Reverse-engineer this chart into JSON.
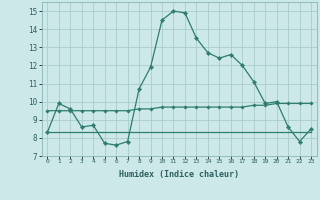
{
  "xlabel": "Humidex (Indice chaleur)",
  "bg_color": "#cce8e8",
  "grid_color": "#aacccc",
  "line_color": "#2e7d6e",
  "xlim": [
    -0.5,
    23.5
  ],
  "ylim": [
    7,
    15.5
  ],
  "yticks": [
    7,
    8,
    9,
    10,
    11,
    12,
    13,
    14,
    15
  ],
  "xticks": [
    0,
    1,
    2,
    3,
    4,
    5,
    6,
    7,
    8,
    9,
    10,
    11,
    12,
    13,
    14,
    15,
    16,
    17,
    18,
    19,
    20,
    21,
    22,
    23
  ],
  "series1_x": [
    0,
    1,
    2,
    3,
    4,
    5,
    6,
    7,
    8,
    9,
    10,
    11,
    12,
    13,
    14,
    15,
    16,
    17,
    18,
    19,
    20,
    21,
    22,
    23
  ],
  "series1_y": [
    8.3,
    9.9,
    9.6,
    8.6,
    8.7,
    7.7,
    7.6,
    7.8,
    10.7,
    11.9,
    14.5,
    15.0,
    14.9,
    13.5,
    12.7,
    12.4,
    12.6,
    12.0,
    11.1,
    9.9,
    10.0,
    8.6,
    7.8,
    8.5
  ],
  "series2_x": [
    0,
    1,
    2,
    3,
    4,
    5,
    6,
    7,
    8,
    9,
    10,
    11,
    12,
    13,
    14,
    15,
    16,
    17,
    18,
    19,
    20,
    21,
    22,
    23
  ],
  "series2_y": [
    9.5,
    9.5,
    9.5,
    9.5,
    9.5,
    9.5,
    9.5,
    9.5,
    9.6,
    9.6,
    9.7,
    9.7,
    9.7,
    9.7,
    9.7,
    9.7,
    9.7,
    9.7,
    9.8,
    9.8,
    9.9,
    9.9,
    9.9,
    9.9
  ],
  "series3_x": [
    0,
    1,
    2,
    3,
    4,
    5,
    6,
    7,
    8,
    9,
    10,
    11,
    12,
    13,
    14,
    15,
    16,
    17,
    18,
    19,
    20,
    21,
    22,
    23
  ],
  "series3_y": [
    8.3,
    8.3,
    8.3,
    8.3,
    8.3,
    8.3,
    8.3,
    8.3,
    8.3,
    8.3,
    8.3,
    8.3,
    8.3,
    8.3,
    8.3,
    8.3,
    8.3,
    8.3,
    8.3,
    8.3,
    8.3,
    8.3,
    8.3,
    8.3
  ]
}
